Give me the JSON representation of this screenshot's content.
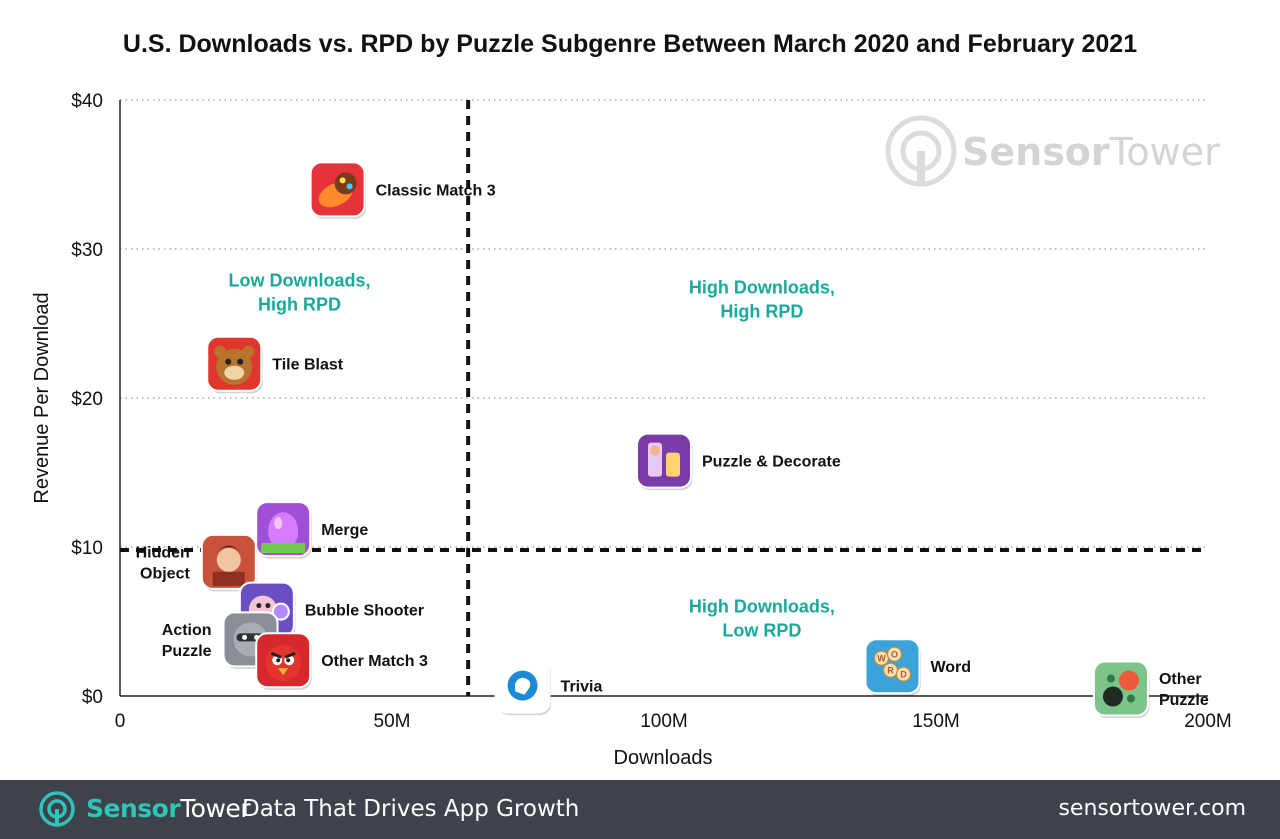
{
  "chart_data": {
    "type": "scatter",
    "title": "U.S. Downloads vs. RPD by Puzzle Subgenre Between March 2020 and February 2021",
    "xlabel": "Downloads",
    "ylabel": "Revenue Per Download",
    "xlim": [
      0,
      200
    ],
    "ylim": [
      0,
      40
    ],
    "x_ticks": [
      {
        "value": 0,
        "label": "0"
      },
      {
        "value": 50,
        "label": "50M"
      },
      {
        "value": 100,
        "label": "100M"
      },
      {
        "value": 150,
        "label": "150M"
      },
      {
        "value": 200,
        "label": "200M"
      }
    ],
    "y_ticks": [
      {
        "value": 0,
        "label": "$0"
      },
      {
        "value": 10,
        "label": "$10"
      },
      {
        "value": 20,
        "label": "$20"
      },
      {
        "value": 30,
        "label": "$30"
      },
      {
        "value": 40,
        "label": "$40"
      }
    ],
    "grid": "horizontal dotted",
    "reference_lines": {
      "x": 64,
      "y": 9.8
    },
    "quadrant_labels": [
      {
        "lines": [
          "Low Downloads,",
          "High RPD"
        ],
        "x": 33,
        "y": 27.5
      },
      {
        "lines": [
          "High Downloads,",
          "High RPD"
        ],
        "x": 118,
        "y": 27
      },
      {
        "lines": [
          "High Downloads,",
          "Low RPD"
        ],
        "x": 118,
        "y": 5.6
      }
    ],
    "points": [
      {
        "name": "Classic Match 3",
        "lines": [
          "Classic Match 3"
        ],
        "x": 40,
        "y": 34,
        "icon": "candy-icon",
        "color": "#e5323b",
        "label_side": "right"
      },
      {
        "name": "Tile Blast",
        "lines": [
          "Tile Blast"
        ],
        "x": 21,
        "y": 22.3,
        "icon": "bear-icon",
        "color": "#e0362d",
        "label_side": "right"
      },
      {
        "name": "Puzzle & Decorate",
        "lines": [
          "Puzzle & Decorate"
        ],
        "x": 100,
        "y": 15.8,
        "icon": "decorate-icon",
        "color": "#7b3ba8",
        "label_side": "right"
      },
      {
        "name": "Merge",
        "lines": [
          "Merge"
        ],
        "x": 30,
        "y": 11.2,
        "icon": "egg-icon",
        "color": "#a24fd8",
        "label_side": "right"
      },
      {
        "name": "Hidden Object",
        "lines": [
          "Hidden",
          "Object"
        ],
        "x": 20,
        "y": 9,
        "icon": "portrait-icon",
        "color": "#c8523b",
        "label_side": "left"
      },
      {
        "name": "Bubble Shooter",
        "lines": [
          "Bubble Shooter"
        ],
        "x": 27,
        "y": 5.8,
        "icon": "bubble-icon",
        "color": "#6a4fc4",
        "label_side": "right"
      },
      {
        "name": "Action Puzzle",
        "lines": [
          "Action",
          "Puzzle"
        ],
        "x": 24,
        "y": 3.8,
        "icon": "raccoon-icon",
        "color": "#8a8f96",
        "label_side": "left"
      },
      {
        "name": "Other Match 3",
        "lines": [
          "Other Match 3"
        ],
        "x": 30,
        "y": 2.4,
        "icon": "bird-icon",
        "color": "#d5282d",
        "label_side": "right"
      },
      {
        "name": "Trivia",
        "lines": [
          "Trivia"
        ],
        "x": 74,
        "y": 0.7,
        "icon": "brain-icon",
        "color": "#1d8ad6",
        "label_side": "right"
      },
      {
        "name": "Word",
        "lines": [
          "Word"
        ],
        "x": 142,
        "y": 2,
        "icon": "word-icon",
        "color": "#3aa3d9",
        "label_side": "right"
      },
      {
        "name": "Other Puzzle",
        "lines": [
          "Other",
          "Puzzle"
        ],
        "x": 184,
        "y": 0.5,
        "icon": "dots-icon",
        "color": "#7cc48a",
        "label_side": "right"
      }
    ]
  },
  "watermark": {
    "brand_part1": "Sensor",
    "brand_part2": "Tower",
    "color": "#dcdcdc"
  },
  "footer": {
    "brand_part1": "Sensor",
    "brand_part2": "Tower",
    "tagline": "Data That Drives App Growth",
    "website": "sensortower.com",
    "background": "#3e434b",
    "accent": "#2ec4b6"
  }
}
